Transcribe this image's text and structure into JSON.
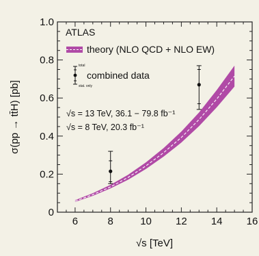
{
  "chart_data": {
    "type": "line",
    "experiment_label": "ATLAS",
    "xlabel": "√s [TeV]",
    "ylabel": "σ(pp → tt̄H) [pb]",
    "xlim": [
      5,
      16
    ],
    "ylim": [
      0,
      1.0
    ],
    "xticks": [
      "6",
      "8",
      "10",
      "12",
      "14",
      "16"
    ],
    "yticks": [
      "0",
      "0.2",
      "0.4",
      "0.6",
      "0.8",
      "1.0"
    ],
    "grid": false,
    "legend_placement": "top-left",
    "theory": {
      "name": "theory (NLO QCD + NLO EW)",
      "color": "#b04aa6",
      "x": [
        6,
        7,
        8,
        9,
        10,
        11,
        12,
        13,
        14,
        15
      ],
      "central": [
        0.058,
        0.092,
        0.133,
        0.183,
        0.243,
        0.313,
        0.393,
        0.487,
        0.595,
        0.715
      ],
      "lower": [
        0.054,
        0.086,
        0.125,
        0.171,
        0.227,
        0.292,
        0.366,
        0.452,
        0.551,
        0.66
      ],
      "upper": [
        0.063,
        0.1,
        0.144,
        0.197,
        0.262,
        0.337,
        0.424,
        0.524,
        0.642,
        0.77
      ]
    },
    "data": {
      "name": "combined data",
      "label_total": "total",
      "label_stat": "stat. only",
      "points": [
        {
          "x": 8,
          "y": 0.215,
          "total_err": [
            0.15,
            0.32
          ],
          "stat_err": [
            0.16,
            0.27
          ]
        },
        {
          "x": 13,
          "y": 0.67,
          "total_err": [
            0.54,
            0.77
          ],
          "stat_err": [
            0.57,
            0.75
          ]
        }
      ]
    },
    "annotations": [
      "√s = 13 TeV, 36.1 − 79.8 fb⁻¹",
      "√s = 8 TeV, 20.3 fb⁻¹"
    ]
  }
}
